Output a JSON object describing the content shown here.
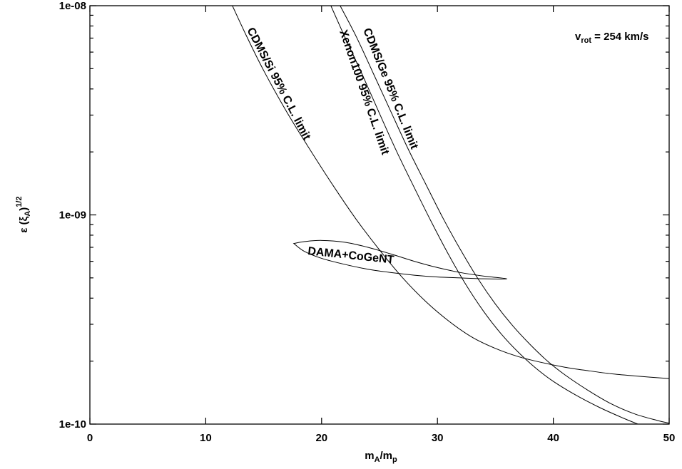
{
  "chart_data": {
    "type": "line",
    "title": "",
    "xlabel": {
      "base": "m",
      "sub1": "A",
      "mid": "/m",
      "sub2": "p"
    },
    "ylabel": {
      "pre": "ε (ξ",
      "sub": "A",
      "post": ")",
      "sup": "1/2"
    },
    "xlim": [
      0,
      50
    ],
    "ylim": [
      1e-10,
      1e-08
    ],
    "yscale": "log",
    "grid": false,
    "x_ticks": [
      0,
      10,
      20,
      30,
      40,
      50
    ],
    "x_tick_labels": [
      "0",
      "10",
      "20",
      "30",
      "40",
      "50"
    ],
    "y_ticks": [
      1e-10,
      1e-09,
      1e-08
    ],
    "y_tick_labels": [
      "1e-10",
      "1e-09",
      "1e-08"
    ],
    "annotation": {
      "pre": "v",
      "sub": "rot",
      "post": " = 254 km/s"
    },
    "series": [
      {
        "label": "CDMS/Si 95% C.L. limit",
        "x": [
          12.3,
          13.5,
          15,
          17,
          19,
          21,
          23,
          25,
          27,
          29,
          31,
          33,
          35,
          37,
          39,
          41,
          43,
          45,
          47,
          50
        ],
        "y": [
          1e-08,
          7.2e-09,
          4.9e-09,
          3.1e-09,
          2.05e-09,
          1.38e-09,
          9.5e-10,
          6.8e-10,
          5e-10,
          3.85e-10,
          3.1e-10,
          2.6e-10,
          2.3e-10,
          2.1e-10,
          1.97e-10,
          1.87e-10,
          1.8e-10,
          1.74e-10,
          1.7e-10,
          1.65e-10
        ]
      },
      {
        "label": "Xenon100 95% C.L. limit",
        "x": [
          20.8,
          22,
          23.5,
          25,
          26.5,
          28,
          29.5,
          31,
          32.5,
          34,
          35.5,
          37,
          38.5,
          40,
          42,
          44,
          46,
          47.3
        ],
        "y": [
          1e-08,
          7.1e-09,
          4.7e-09,
          3.05e-09,
          2e-09,
          1.35e-09,
          9.2e-10,
          6.4e-10,
          4.6e-10,
          3.45e-10,
          2.7e-10,
          2.2e-10,
          1.85e-10,
          1.6e-10,
          1.37e-10,
          1.2e-10,
          1.07e-10,
          1e-10
        ]
      },
      {
        "label": "CDMS/Ge 95% C.L. limit",
        "x": [
          21.6,
          23,
          24.5,
          26,
          27.5,
          29,
          30.5,
          32,
          33.5,
          35,
          36.5,
          38,
          39.5,
          41,
          43,
          45,
          47,
          49,
          50
        ],
        "y": [
          1e-08,
          7.1e-09,
          4.7e-09,
          3.1e-09,
          2.05e-09,
          1.4e-09,
          9.6e-10,
          6.8e-10,
          4.95e-10,
          3.75e-10,
          2.95e-10,
          2.4e-10,
          2e-10,
          1.72e-10,
          1.45e-10,
          1.25e-10,
          1.12e-10,
          1.04e-10,
          1.01e-10
        ]
      },
      {
        "label": "DAMA+CoGeNT",
        "closed": true,
        "x": [
          17.6,
          18.5,
          20,
          22,
          24,
          26,
          28,
          30,
          32,
          34,
          36,
          34,
          32,
          30,
          28,
          26,
          24,
          22,
          20,
          18.5,
          17.6
        ],
        "y": [
          7.3e-10,
          7.45e-10,
          7.55e-10,
          7.4e-10,
          7e-10,
          6.5e-10,
          6e-10,
          5.6e-10,
          5.3e-10,
          5.1e-10,
          4.95e-10,
          4.95e-10,
          5e-10,
          5.05e-10,
          5.15e-10,
          5.3e-10,
          5.5e-10,
          5.8e-10,
          6.2e-10,
          6.7e-10,
          7.3e-10
        ]
      }
    ]
  }
}
